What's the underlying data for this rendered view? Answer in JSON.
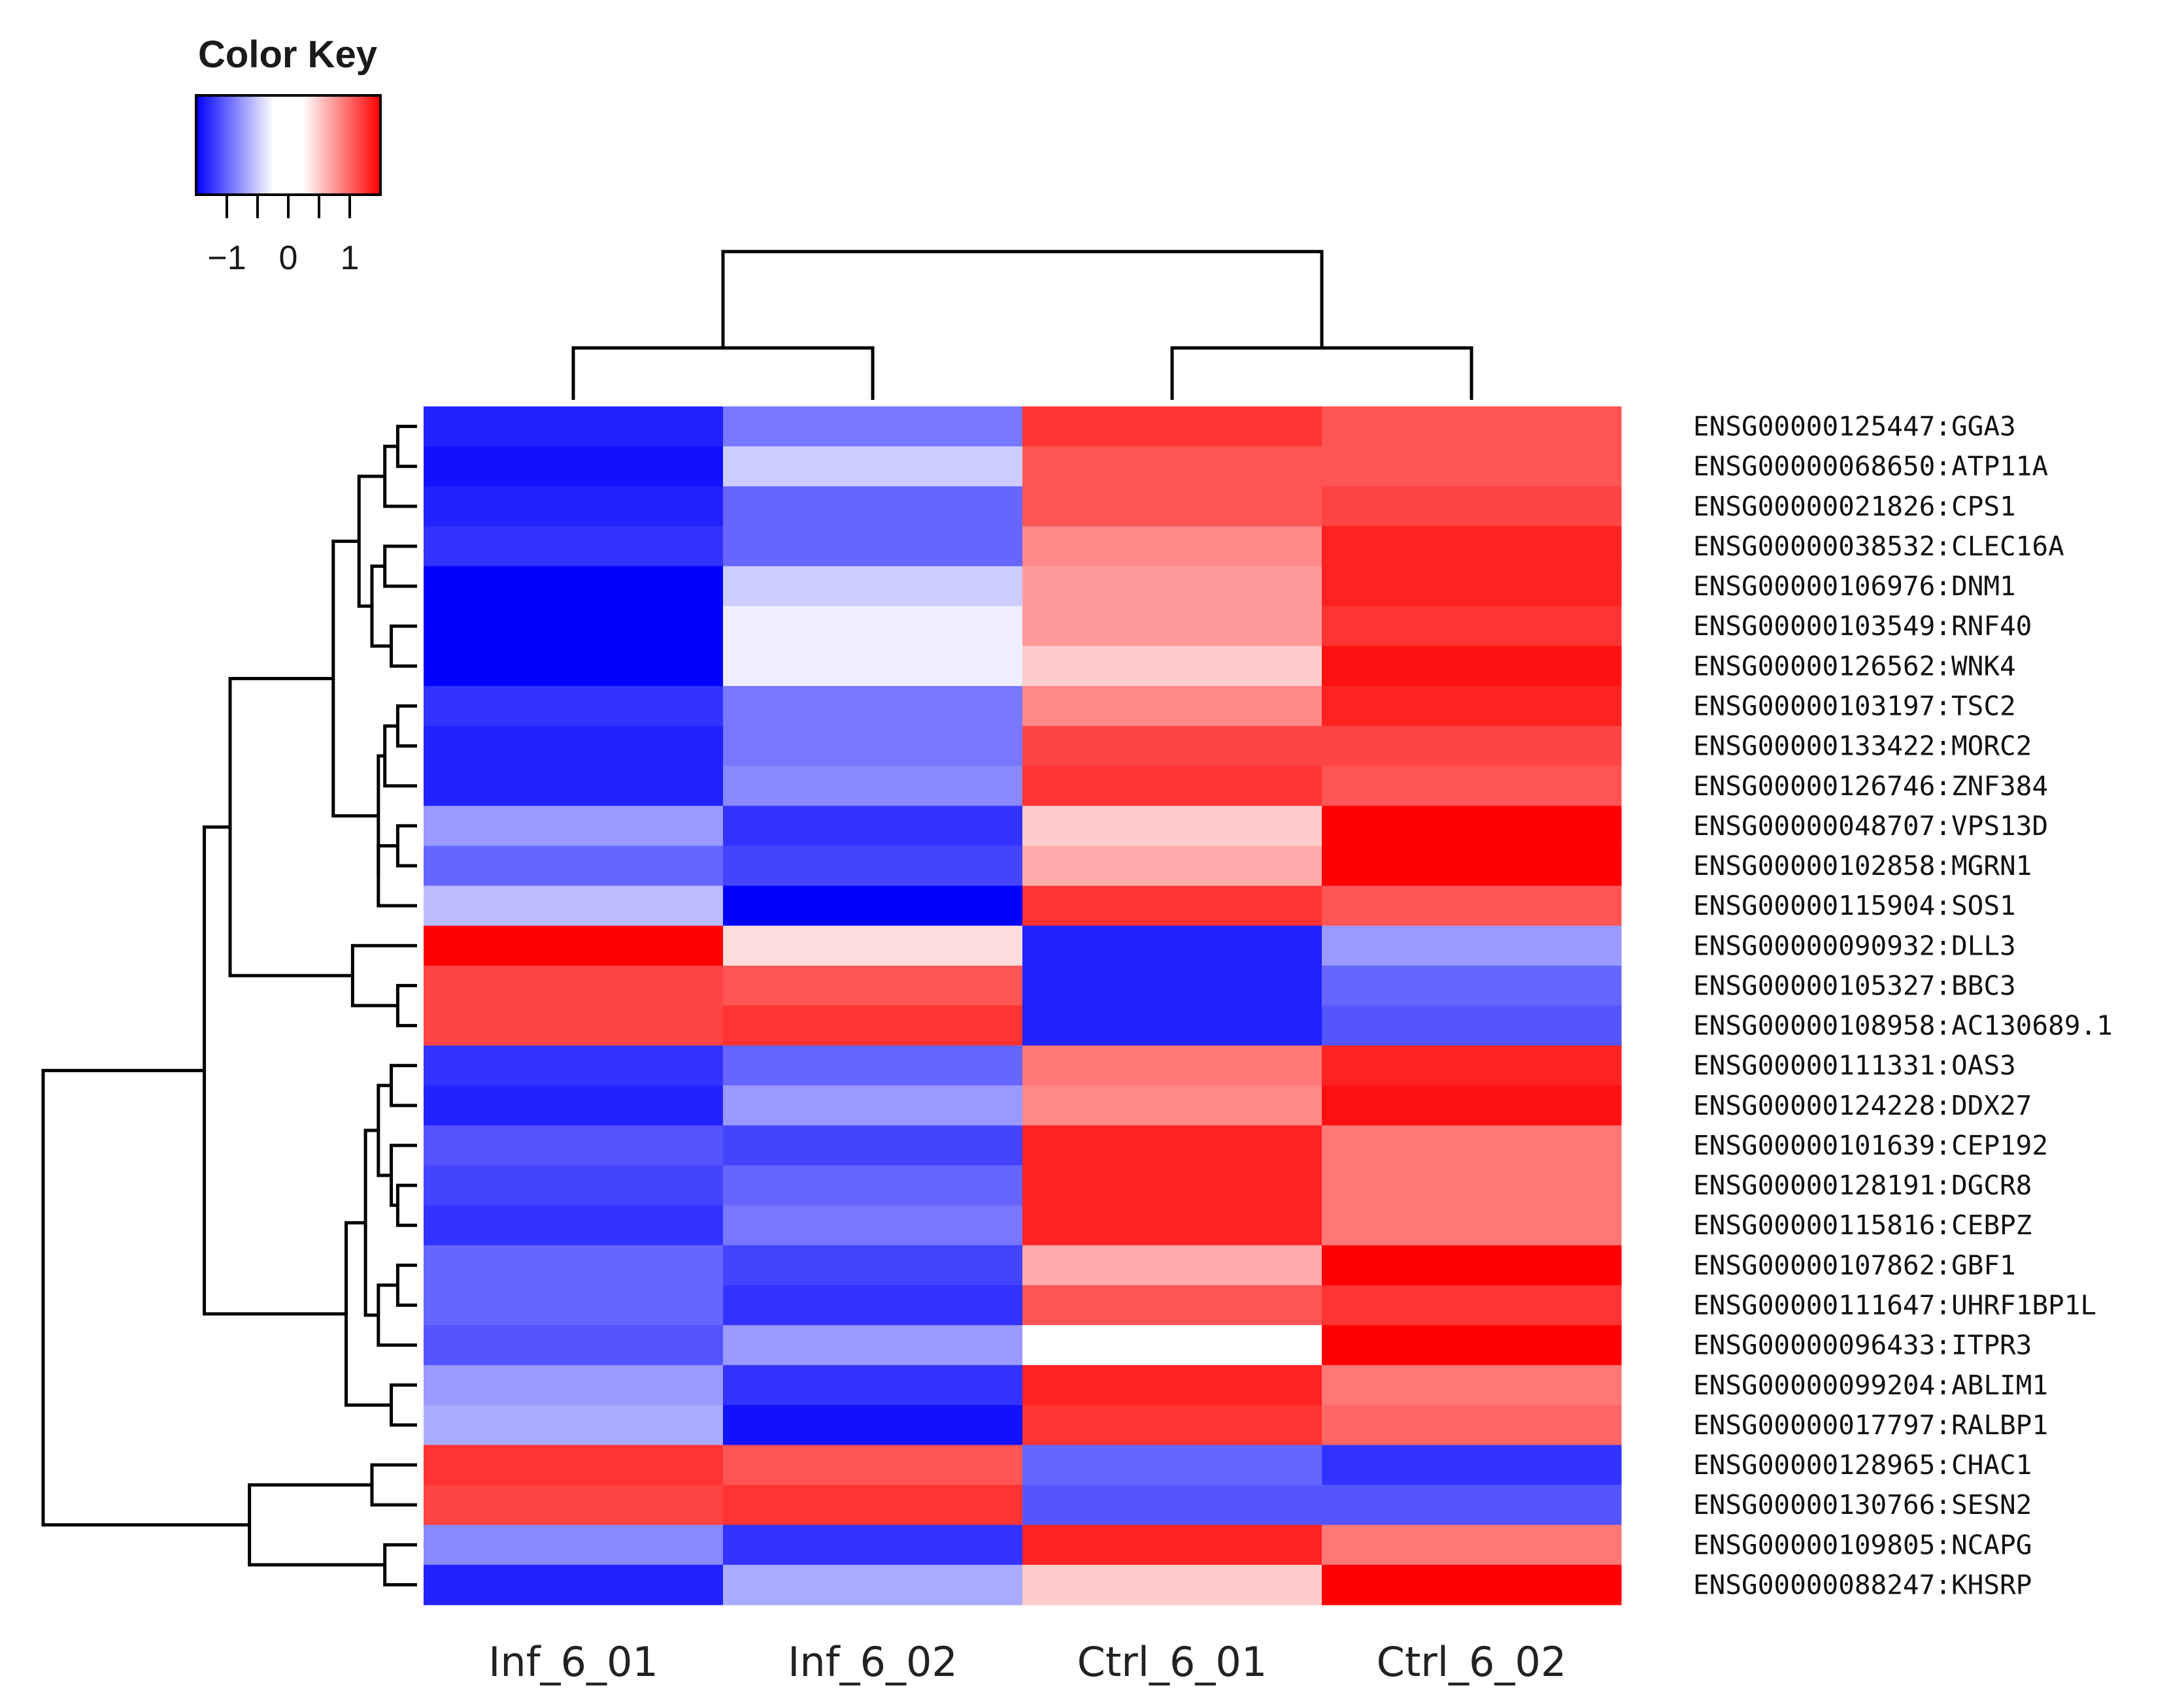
{
  "chart_data": {
    "type": "heatmap",
    "title": "",
    "color_key": {
      "title": "Color Key",
      "ticks": [
        "−1",
        "0",
        "1"
      ],
      "range": [
        -1.5,
        1.5
      ],
      "colors": {
        "low": "#0000ff",
        "mid": "#ffffff",
        "high": "#ff0000"
      }
    },
    "columns": [
      "Inf_6_01",
      "Inf_6_02",
      "Ctrl_6_01",
      "Ctrl_6_02"
    ],
    "rows": [
      "ENSG00000125447:GGA3",
      "ENSG00000068650:ATP11A",
      "ENSG00000021826:CPS1",
      "ENSG00000038532:CLEC16A",
      "ENSG00000106976:DNM1",
      "ENSG00000103549:RNF40",
      "ENSG00000126562:WNK4",
      "ENSG00000103197:TSC2",
      "ENSG00000133422:MORC2",
      "ENSG00000126746:ZNF384",
      "ENSG00000048707:VPS13D",
      "ENSG00000102858:MGRN1",
      "ENSG00000115904:SOS1",
      "ENSG00000090932:DLL3",
      "ENSG00000105327:BBC3",
      "ENSG00000108958:AC130689.1",
      "ENSG00000111331:OAS3",
      "ENSG00000124228:DDX27",
      "ENSG00000101639:CEP192",
      "ENSG00000128191:DGCR8",
      "ENSG00000115816:CEBPZ",
      "ENSG00000107862:GBF1",
      "ENSG00000111647:UHRF1BP1L",
      "ENSG00000096433:ITPR3",
      "ENSG00000099204:ABLIM1",
      "ENSG00000017797:RALBP1",
      "ENSG00000128965:CHAC1",
      "ENSG00000130766:SESN2",
      "ENSG00000109805:NCAPG",
      "ENSG00000088247:KHSRP"
    ],
    "values": [
      [
        -1.3,
        -0.8,
        1.2,
        1.0
      ],
      [
        -1.4,
        -0.3,
        1.0,
        1.0
      ],
      [
        -1.3,
        -0.9,
        1.0,
        1.1
      ],
      [
        -1.2,
        -0.9,
        0.7,
        1.3
      ],
      [
        -1.5,
        -0.3,
        0.6,
        1.3
      ],
      [
        -1.5,
        -0.1,
        0.6,
        1.2
      ],
      [
        -1.5,
        -0.1,
        0.3,
        1.4
      ],
      [
        -1.2,
        -0.8,
        0.7,
        1.3
      ],
      [
        -1.3,
        -0.8,
        1.1,
        1.1
      ],
      [
        -1.3,
        -0.7,
        1.2,
        1.0
      ],
      [
        -0.6,
        -1.2,
        0.3,
        1.5
      ],
      [
        -0.9,
        -1.1,
        0.5,
        1.5
      ],
      [
        -0.4,
        -1.5,
        1.2,
        1.0
      ],
      [
        1.5,
        0.2,
        -1.3,
        -0.6
      ],
      [
        1.1,
        1.0,
        -1.3,
        -0.9
      ],
      [
        1.1,
        1.2,
        -1.3,
        -1.0
      ],
      [
        -1.2,
        -0.9,
        0.8,
        1.3
      ],
      [
        -1.3,
        -0.6,
        0.7,
        1.4
      ],
      [
        -1.0,
        -1.1,
        1.3,
        0.8
      ],
      [
        -1.1,
        -0.9,
        1.3,
        0.8
      ],
      [
        -1.2,
        -0.8,
        1.3,
        0.8
      ],
      [
        -0.9,
        -1.1,
        0.5,
        1.5
      ],
      [
        -0.9,
        -1.2,
        1.0,
        1.2
      ],
      [
        -1.0,
        -0.6,
        0.0,
        1.5
      ],
      [
        -0.6,
        -1.2,
        1.3,
        0.8
      ],
      [
        -0.5,
        -1.4,
        1.2,
        0.9
      ],
      [
        1.2,
        1.0,
        -0.9,
        -1.2
      ],
      [
        1.1,
        1.2,
        -1.0,
        -1.0
      ],
      [
        -0.7,
        -1.2,
        1.3,
        0.8
      ],
      [
        -1.3,
        -0.5,
        0.3,
        1.5
      ]
    ]
  }
}
